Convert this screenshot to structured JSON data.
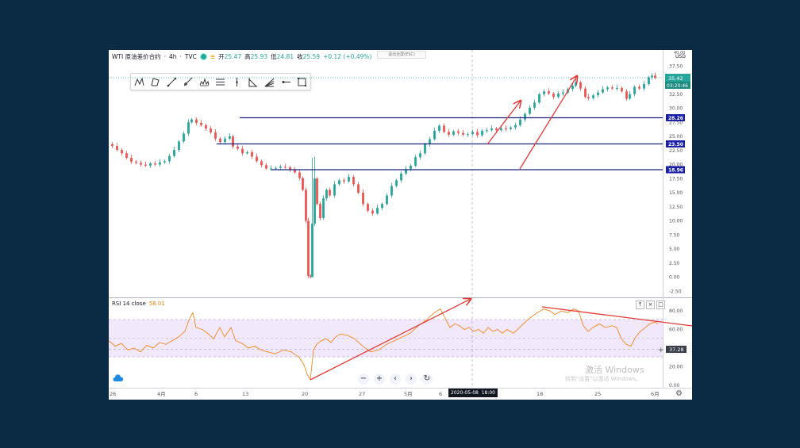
{
  "legend": {
    "symbol": "WTI 原油差价合约",
    "interval": "4h",
    "source": "TVC",
    "open_label": "开",
    "open": "25.47",
    "high_label": "高",
    "high": "25.93",
    "low_label": "低",
    "low": "24.81",
    "close_label": "收",
    "close": "25.59",
    "change": "+0.12 (+0.49%)"
  },
  "esc_hint": "退出全屏(ESC)",
  "toolbar": {
    "tools": [
      "xabcd-pattern-icon",
      "cypher-pattern-icon",
      "trend-line-icon",
      "ray-icon",
      "head-shoulders-icon",
      "parallel-channel-icon",
      "vertical-line-icon",
      "triangle-pattern-icon",
      "fib-fan-icon",
      "horizontal-ray-icon",
      "rectangle-icon"
    ]
  },
  "price_axis": {
    "currency": "USD",
    "top_tick_partial": "40.00",
    "labels": [
      "37.50",
      "35.00",
      "32.50",
      "30.00",
      "27.50",
      "25.00",
      "22.50",
      "20.00",
      "17.50",
      "15.00",
      "12.50",
      "10.00",
      "7.50",
      "5.00",
      "2.50",
      "0.00",
      "-2.50"
    ],
    "current_price": "35.42",
    "countdown": "03:20:46",
    "levels": [
      "28.26",
      "23.50",
      "18.96"
    ]
  },
  "rsi": {
    "label": "RSI 14 close",
    "value": "58.01",
    "axis_labels": [
      "80.00",
      "60.00",
      "40.00",
      "20.00",
      "0.00"
    ],
    "crosshair_value": "37.28"
  },
  "time_axis": {
    "labels": [
      "26",
      "4月",
      "6",
      "13",
      "20",
      "27",
      "5月",
      "6",
      "11",
      "18",
      "25",
      "6月"
    ],
    "crosshair_date": "2020-05-08",
    "crosshair_time": "18:00"
  },
  "watermark": {
    "line1": "激活 Windows",
    "line2": "转到\"设置\"以激活 Windows。"
  },
  "nav_buttons": [
    "zoom-out",
    "zoom-in",
    "scroll-left",
    "scroll-right",
    "reset"
  ],
  "nav_glyphs": [
    "−",
    "+",
    "‹",
    "›",
    "↻"
  ],
  "colors": {
    "up": "#26a69a",
    "down": "#ef5350",
    "level_line": "#1a237e",
    "level_badge": "#1a1fa8",
    "price_badge": "#26a69a",
    "rsi_line": "#f57c00",
    "rsi_band": "#ede0fb",
    "annotation": "#e53935",
    "background": "#0b2b45"
  }
}
